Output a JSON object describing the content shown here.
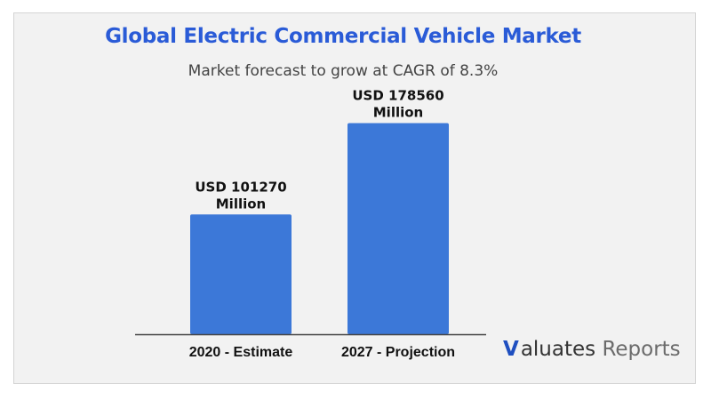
{
  "chart_data": {
    "type": "bar",
    "title": "Global Electric Commercial Vehicle Market",
    "subtitle": "Market forecast to grow at CAGR of 8.3%",
    "categories": [
      "2020 - Estimate",
      "2027 - Projection"
    ],
    "values": [
      101270,
      178560
    ],
    "data_labels": [
      [
        "USD 101270",
        "Million"
      ],
      [
        "USD 178560",
        "Million"
      ]
    ],
    "xlabel": "",
    "ylabel": "",
    "ylim": [
      0,
      200000
    ],
    "grid": false,
    "bar_color": "#3c78d8"
  },
  "brand": {
    "v": "V",
    "name": "aluates",
    "suffix": "Reports"
  },
  "colors": {
    "title": "#2a5bd7",
    "bar": "#3c78d8",
    "axis": "#444444"
  }
}
